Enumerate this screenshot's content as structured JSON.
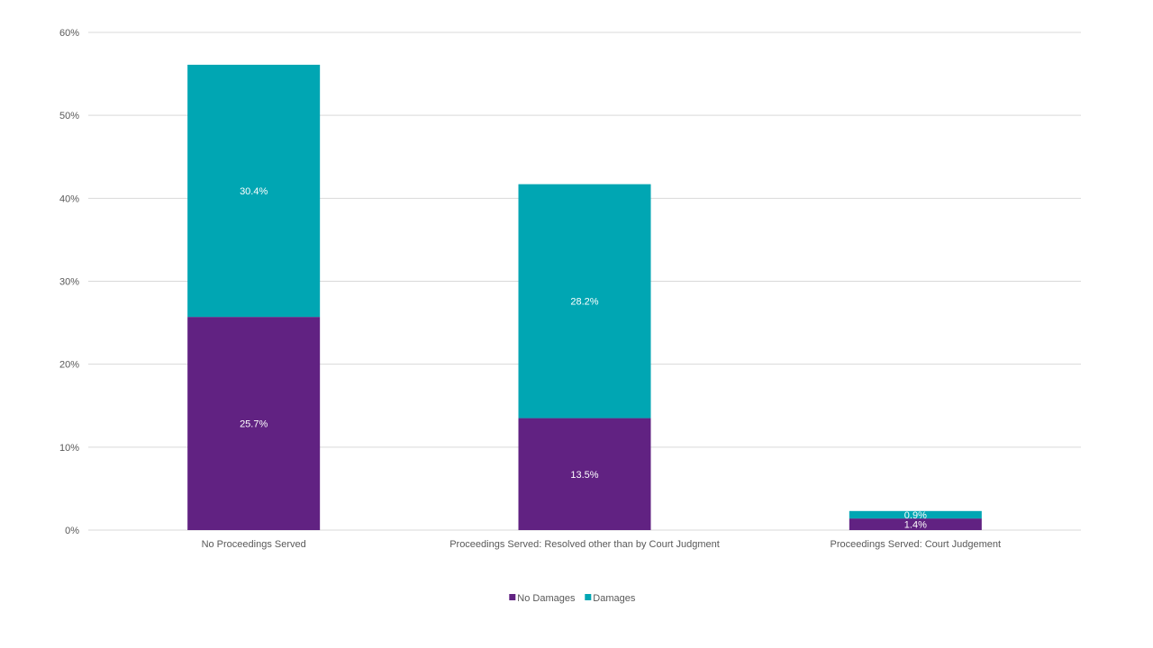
{
  "chart_data": {
    "type": "bar",
    "stacked": true,
    "categories": [
      "No Proceedings Served",
      "Proceedings Served: Resolved other than by Court Judgment",
      "Proceedings Served: Court Judgement"
    ],
    "series": [
      {
        "name": "No Damages",
        "values": [
          25.7,
          13.5,
          1.4
        ],
        "labels": [
          "25.7%",
          "13.5%",
          "1.4%"
        ],
        "color": "#612282"
      },
      {
        "name": "Damages",
        "values": [
          30.4,
          28.2,
          0.9
        ],
        "labels": [
          "30.4%",
          "28.2%",
          "0.9%"
        ],
        "color": "#00a6b3"
      }
    ],
    "y_ticks": [
      "0%",
      "10%",
      "20%",
      "30%",
      "40%",
      "50%",
      "60%"
    ],
    "ylim": [
      0,
      60
    ],
    "grid": true,
    "legend_position": "bottom",
    "title": "",
    "xlabel": "",
    "ylabel": ""
  }
}
